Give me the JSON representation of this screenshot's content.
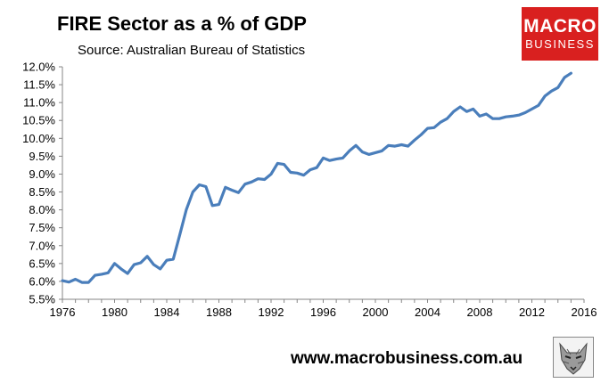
{
  "header": {
    "title": "FIRE Sector as a % of GDP",
    "subtitle": "Source: Australian Bureau of Statistics"
  },
  "logo": {
    "line1": "MACRO",
    "line2": "BUSINESS",
    "color": "#d9201f"
  },
  "footer": {
    "website": "www.macrobusiness.com.au"
  },
  "chart_data": {
    "type": "line",
    "title": "FIRE Sector as a % of GDP",
    "xlabel": "",
    "ylabel": "",
    "xlim": [
      1976,
      2016
    ],
    "ylim": [
      5.5,
      12.0
    ],
    "grid": false,
    "line_color": "#4a7ebb",
    "x_ticks": [
      1976,
      1980,
      1984,
      1988,
      1992,
      1996,
      2000,
      2004,
      2008,
      2012,
      2016
    ],
    "y_ticks": [
      {
        "value": 5.5,
        "label": "5.5%"
      },
      {
        "value": 6.0,
        "label": "6.0%"
      },
      {
        "value": 6.5,
        "label": "6.5%"
      },
      {
        "value": 7.0,
        "label": "7.0%"
      },
      {
        "value": 7.5,
        "label": "7.5%"
      },
      {
        "value": 8.0,
        "label": "8.0%"
      },
      {
        "value": 8.5,
        "label": "8.5%"
      },
      {
        "value": 9.0,
        "label": "9.0%"
      },
      {
        "value": 9.5,
        "label": "9.5%"
      },
      {
        "value": 10.0,
        "label": "10.0%"
      },
      {
        "value": 10.5,
        "label": "10.5%"
      },
      {
        "value": 11.0,
        "label": "11.0%"
      },
      {
        "value": 11.5,
        "label": "11.5%"
      },
      {
        "value": 12.0,
        "label": "12.0%"
      }
    ],
    "series": [
      {
        "name": "FIRE Sector as a % of GDP",
        "x": [
          1976.0,
          1976.5,
          1977.0,
          1977.5,
          1978.0,
          1978.5,
          1979.0,
          1979.5,
          1980.0,
          1980.5,
          1981.0,
          1981.5,
          1982.0,
          1982.5,
          1983.0,
          1983.5,
          1984.0,
          1984.5,
          1985.0,
          1985.5,
          1986.0,
          1986.5,
          1987.0,
          1987.5,
          1988.0,
          1988.5,
          1989.0,
          1989.5,
          1990.0,
          1990.5,
          1991.0,
          1991.5,
          1992.0,
          1992.5,
          1993.0,
          1993.5,
          1994.0,
          1994.5,
          1995.0,
          1995.5,
          1996.0,
          1996.5,
          1997.0,
          1997.5,
          1998.0,
          1998.5,
          1999.0,
          1999.5,
          2000.0,
          2000.5,
          2001.0,
          2001.5,
          2002.0,
          2002.5,
          2003.0,
          2003.5,
          2004.0,
          2004.5,
          2005.0,
          2005.5,
          2006.0,
          2006.5,
          2007.0,
          2007.5,
          2008.0,
          2008.5,
          2009.0,
          2009.5,
          2010.0,
          2010.5,
          2011.0,
          2011.5,
          2012.0,
          2012.5,
          2013.0,
          2013.5,
          2014.0,
          2014.5,
          2015.0
        ],
        "values": [
          6.02,
          5.98,
          6.06,
          5.97,
          5.97,
          6.17,
          6.2,
          6.24,
          6.5,
          6.35,
          6.22,
          6.47,
          6.52,
          6.7,
          6.47,
          6.35,
          6.59,
          6.62,
          7.3,
          8.0,
          8.5,
          8.7,
          8.65,
          8.12,
          8.15,
          8.63,
          8.55,
          8.48,
          8.72,
          8.78,
          8.87,
          8.85,
          9.0,
          9.3,
          9.27,
          9.05,
          9.03,
          8.97,
          9.12,
          9.18,
          9.45,
          9.38,
          9.42,
          9.45,
          9.65,
          9.8,
          9.62,
          9.55,
          9.6,
          9.65,
          9.8,
          9.78,
          9.82,
          9.78,
          9.95,
          10.1,
          10.28,
          10.3,
          10.45,
          10.55,
          10.75,
          10.88,
          10.75,
          10.82,
          10.62,
          10.68,
          10.55,
          10.55,
          10.6,
          10.62,
          10.65,
          10.72,
          10.82,
          10.92,
          11.18,
          11.32,
          11.42,
          11.7,
          11.82
        ]
      }
    ]
  }
}
